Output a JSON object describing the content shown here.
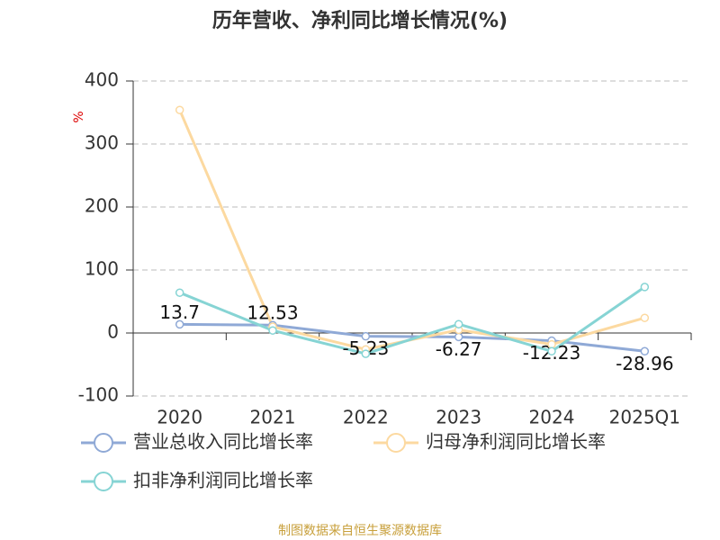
{
  "chart_data": {
    "type": "line",
    "title": "历年营收、净利同比增长情况(%)",
    "y_label": "%",
    "source": "制图数据来自恒生聚源数据库",
    "categories": [
      "2020",
      "2021",
      "2022",
      "2023",
      "2024",
      "2025Q1"
    ],
    "series": [
      {
        "name": "营业总收入同比增长率",
        "color": "#8fa9d6",
        "values": [
          13.7,
          12.53,
          -5.23,
          -6.27,
          -12.23,
          -28.96
        ],
        "data_labels": true
      },
      {
        "name": "归母净利润同比增长率",
        "color": "#fcd9a0",
        "values": [
          354,
          10,
          -26,
          5,
          -18,
          24
        ]
      },
      {
        "name": "扣非净利润同比增长率",
        "color": "#86d4d4",
        "values": [
          64,
          4,
          -33,
          14,
          -29,
          73
        ]
      }
    ],
    "ylim": [
      -100,
      400
    ],
    "yticks": [
      -100,
      0,
      100,
      200,
      300,
      400
    ],
    "grid": true
  }
}
